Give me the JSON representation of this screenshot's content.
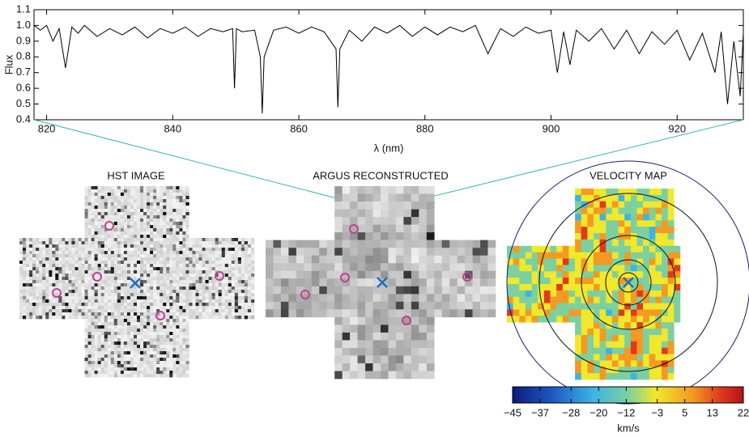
{
  "chart_data": [
    {
      "type": "line",
      "xlabel": "λ (nm)",
      "ylabel": "Flux",
      "xlim": [
        818,
        930.5
      ],
      "ylim": [
        0.4,
        1.1
      ],
      "xticks": [
        820,
        840,
        860,
        880,
        900,
        920
      ],
      "yticks": [
        0.4,
        0.5,
        0.6,
        0.7,
        0.8,
        0.9,
        {
          "value": 1,
          "label": "1.0"
        },
        1.1
      ],
      "color": "#000000",
      "x": [
        818,
        819,
        820,
        821,
        822,
        823,
        824,
        825,
        826,
        828,
        830,
        832,
        834,
        836,
        838,
        840,
        842,
        844,
        846,
        848,
        849.5,
        849.8,
        850.1,
        851,
        853,
        853.9,
        854.2,
        854.5,
        856,
        858,
        860,
        862,
        864,
        865.9,
        866.2,
        866.5,
        868,
        870,
        872,
        874,
        876,
        878,
        880,
        882,
        884,
        886,
        888,
        890,
        892,
        894,
        896,
        898,
        900,
        901,
        902,
        903,
        904,
        906,
        908,
        910,
        912,
        914,
        916,
        918,
        920,
        922,
        924,
        926,
        927,
        928,
        929,
        930,
        930.5
      ],
      "values": [
        1.0,
        0.97,
        1.0,
        0.9,
        0.98,
        0.73,
        0.99,
        0.95,
        1.0,
        0.93,
        0.98,
        0.94,
        0.99,
        0.92,
        0.98,
        0.95,
        0.99,
        0.93,
        0.98,
        0.96,
        0.98,
        0.6,
        0.98,
        0.96,
        0.97,
        0.8,
        0.44,
        0.8,
        0.97,
        0.99,
        0.95,
        0.99,
        0.96,
        0.85,
        0.48,
        0.85,
        0.97,
        0.9,
        0.99,
        0.95,
        1.0,
        0.93,
        0.99,
        0.94,
        0.99,
        0.96,
        1.0,
        0.82,
        0.98,
        0.93,
        0.99,
        0.95,
        0.97,
        0.7,
        0.96,
        0.75,
        0.97,
        0.9,
        0.98,
        0.85,
        0.97,
        0.82,
        0.96,
        0.88,
        0.97,
        0.78,
        0.95,
        0.7,
        0.96,
        0.5,
        0.9,
        0.55,
        0.95
      ]
    },
    {
      "type": "image",
      "title": "HST IMAGE"
    },
    {
      "type": "image",
      "title": "ARGUS RECONSTRUCTED"
    },
    {
      "type": "heatmap",
      "title": "VELOCITY MAP",
      "colorbar_label": "km/s",
      "clim": [
        -45,
        22
      ],
      "cticks": [
        {
          "value": -45,
          "label": "−45"
        },
        {
          "value": -37,
          "label": "−37"
        },
        {
          "value": -28,
          "label": "−28"
        },
        {
          "value": -20,
          "label": "−20"
        },
        {
          "value": -12,
          "label": "−12"
        },
        {
          "value": -3,
          "label": "−3"
        },
        5,
        13,
        22
      ]
    }
  ]
}
